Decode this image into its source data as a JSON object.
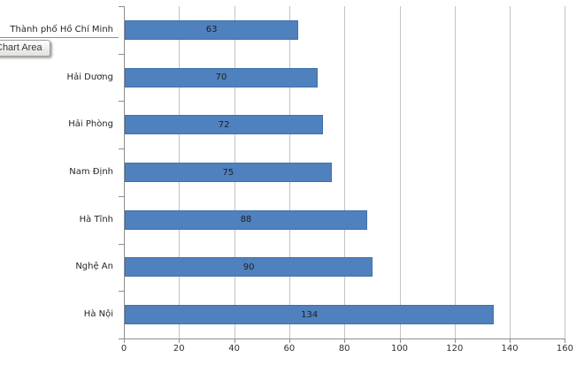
{
  "tooltip": {
    "text": "Chart Area"
  },
  "chart_data": {
    "type": "bar",
    "orientation": "horizontal",
    "title": "",
    "xlabel": "",
    "ylabel": "",
    "categories": [
      "Thành phố Hồ Chí Minh",
      "Hải Dương",
      "Hải Phòng",
      "Nam Định",
      "Hà Tĩnh",
      "Nghệ An",
      "Hà Nội"
    ],
    "values": [
      63,
      70,
      72,
      75,
      88,
      90,
      134
    ],
    "data_labels": [
      "63",
      "70",
      "72",
      "75",
      "88",
      "90",
      "134"
    ],
    "xlim": [
      0,
      160
    ],
    "x_ticks": [
      0,
      20,
      40,
      60,
      80,
      100,
      120,
      140,
      160
    ],
    "grid": true,
    "legend": false,
    "bar_color": "#4E81BD",
    "bar_border_color": "#3E72AA",
    "gridline_color": "#C3C3C3",
    "axis_color": "#8E8E8E",
    "background_color": "#FFFFFF"
  }
}
